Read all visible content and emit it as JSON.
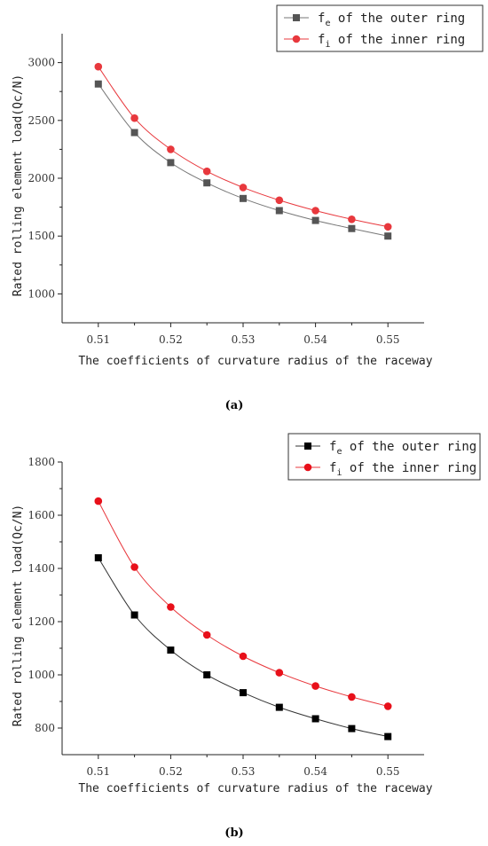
{
  "chart_data": [
    {
      "type": "line",
      "panel_label": "(a)",
      "xlabel": "The coefficients of curvature radius of the raceway",
      "ylabel": "Rated rolling element load(Qc/N)",
      "x": [
        0.51,
        0.515,
        0.52,
        0.525,
        0.53,
        0.535,
        0.54,
        0.545,
        0.55
      ],
      "xticks": [
        "0.51",
        "0.52",
        "0.53",
        "0.54",
        "0.55"
      ],
      "yticks": [
        "1000",
        "1500",
        "2000",
        "2500",
        "3000"
      ],
      "xlim": [
        0.505,
        0.555
      ],
      "ylim": [
        750,
        3250
      ],
      "legend_position": "top-right",
      "series": [
        {
          "name": "fe of the outer ring",
          "name_base": "f",
          "name_sub": "e",
          "name_rest": " of the outer ring",
          "marker": "square",
          "color": "#555555",
          "line_color": "#777777",
          "values": [
            2815,
            2395,
            2135,
            1960,
            1825,
            1720,
            1635,
            1565,
            1500
          ]
        },
        {
          "name": "fi of the inner ring",
          "name_base": "f",
          "name_sub": "i",
          "name_rest": " of the inner ring",
          "marker": "circle",
          "color": "#e8383d",
          "line_color": "#e8383d",
          "values": [
            2965,
            2520,
            2250,
            2060,
            1920,
            1810,
            1720,
            1645,
            1580
          ]
        }
      ]
    },
    {
      "type": "line",
      "panel_label": "(b)",
      "xlabel": "The coefficients of curvature radius of the raceway",
      "ylabel": "Rated rolling element load(Qc/N)",
      "x": [
        0.51,
        0.515,
        0.52,
        0.525,
        0.53,
        0.535,
        0.54,
        0.545,
        0.55
      ],
      "xticks": [
        "0.51",
        "0.52",
        "0.53",
        "0.54",
        "0.55"
      ],
      "yticks": [
        "800",
        "1000",
        "1200",
        "1400",
        "1600",
        "1800"
      ],
      "xlim": [
        0.505,
        0.555
      ],
      "ylim": [
        700,
        1800
      ],
      "legend_position": "top-right",
      "series": [
        {
          "name": "fe of the outer ring",
          "name_base": "f",
          "name_sub": "e",
          "name_rest": " of the outer ring",
          "marker": "square",
          "color": "#000000",
          "line_color": "#333333",
          "values": [
            1440,
            1225,
            1093,
            1000,
            933,
            878,
            835,
            798,
            768
          ]
        },
        {
          "name": "fi of the inner ring",
          "name_base": "f",
          "name_sub": "i",
          "name_rest": " of the inner ring",
          "marker": "circle",
          "color": "#e8101a",
          "line_color": "#e8383d",
          "values": [
            1653,
            1405,
            1255,
            1150,
            1070,
            1008,
            958,
            917,
            882
          ]
        }
      ]
    }
  ]
}
